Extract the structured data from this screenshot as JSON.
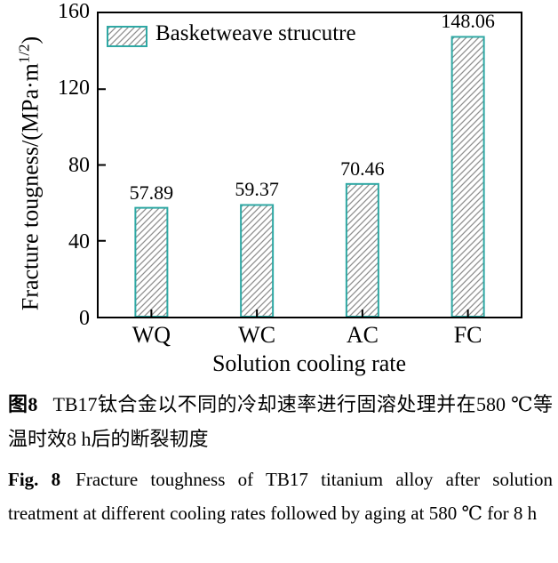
{
  "figure": {
    "caption_cn": {
      "label": "图8",
      "text": "TB17钛合金以不同的冷却速率进行固溶处理并在580 ℃等温时效8 h后的断裂韧度"
    },
    "caption_en": {
      "label": "Fig. 8",
      "text": "Fracture toughness of TB17 titanium alloy after solution treatment at different cooling rates followed by aging at 580 ℃ for 8 h"
    }
  },
  "chart_data": {
    "type": "bar",
    "categories": [
      "WQ",
      "WC",
      "AC",
      "FC"
    ],
    "values": [
      57.89,
      59.37,
      70.46,
      148.06
    ],
    "value_labels": [
      "57.89",
      "59.37",
      "70.46",
      "148.06"
    ],
    "legend_label": "Basketweave strucutre",
    "legend_position": "upper-left",
    "xlabel": "Solution cooling rate",
    "ylabel_parts": {
      "main": "Fracture tougness/(MPa·m",
      "sup": "1/2",
      "end": ")"
    },
    "ylim": [
      0,
      160
    ],
    "yticks": [
      0,
      40,
      80,
      120,
      160
    ],
    "grid": false,
    "hatch_style": "/",
    "colors": {
      "bar_edge": "#2FA8A4",
      "hatch": "#8F8F8F",
      "axis": "#000000",
      "text": "#000000"
    }
  }
}
